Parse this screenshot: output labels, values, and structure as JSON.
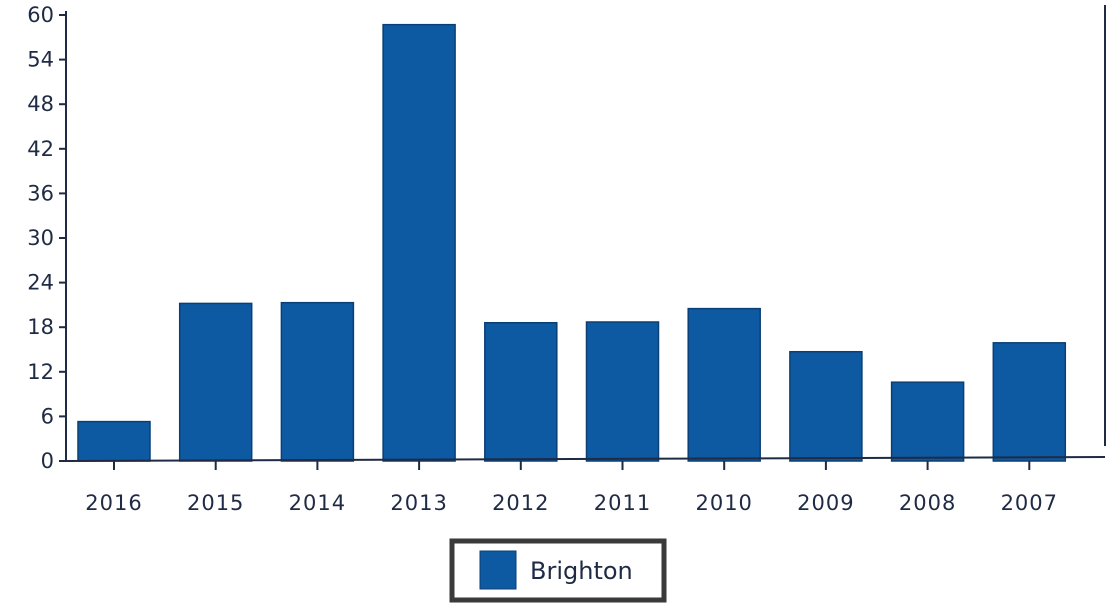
{
  "chart_data": {
    "type": "bar",
    "categories": [
      "2016",
      "2015",
      "2014",
      "2013",
      "2012",
      "2011",
      "2010",
      "2009",
      "2008",
      "2007"
    ],
    "series": [
      {
        "name": "Brighton",
        "values": [
          5.3,
          21.2,
          21.3,
          58.7,
          18.6,
          18.7,
          20.5,
          14.7,
          10.6,
          15.9
        ]
      }
    ],
    "ylim": [
      0,
      60
    ],
    "yticks": [
      "0",
      "6",
      "12",
      "18",
      "24",
      "30",
      "36",
      "42",
      "48",
      "54",
      "60"
    ],
    "legend": {
      "placement": "bottom-center",
      "labels": [
        "Brighton"
      ]
    },
    "grid": false
  },
  "colors": {
    "bar": "#0e5aa2",
    "bar_edge": "#0a3f75",
    "axis": "#1f2a44",
    "legend_border": "#3a3a3a"
  }
}
